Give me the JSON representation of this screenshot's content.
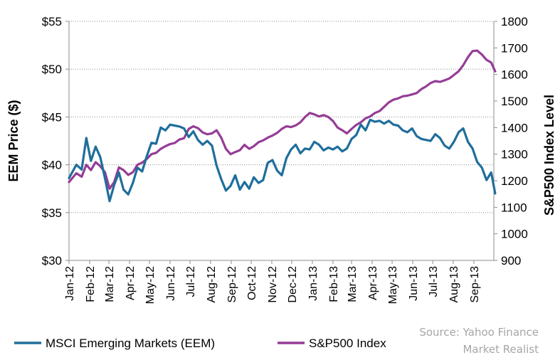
{
  "chart_data": {
    "type": "line",
    "title": "",
    "x_tick_labels": [
      "Jan-12",
      "Feb-12",
      "Mar-12",
      "Apr-12",
      "May-12",
      "Jun-12",
      "Jul-12",
      "Aug-12",
      "Sep-12",
      "Oct-12",
      "Nov-12",
      "Dec-12",
      "Jan-13",
      "Feb-13",
      "Mar-13",
      "Apr-13",
      "May-13",
      "Jun-13",
      "Jul-13",
      "Aug-13",
      "Sep-13"
    ],
    "x_range": [
      "2012-01-01",
      "2013-10-01"
    ],
    "y_left": {
      "label": "EEM Price ($)",
      "ylim": [
        30,
        55
      ],
      "ticks": [
        30,
        35,
        40,
        45,
        50,
        55
      ],
      "tick_labels": [
        "$30",
        "$35",
        "$40",
        "$45",
        "$50",
        "$55"
      ]
    },
    "y_right": {
      "label": "S&P500 Index Level",
      "ylim": [
        900,
        1800
      ],
      "ticks": [
        900,
        1000,
        1100,
        1200,
        1300,
        1400,
        1500,
        1600,
        1700,
        1800
      ],
      "tick_labels": [
        "900",
        "1000",
        "1100",
        "1200",
        "1300",
        "1400",
        "1500",
        "1600",
        "1700",
        "1800"
      ]
    },
    "grid": "horizontal dotted",
    "legend_position": "bottom-left",
    "series": [
      {
        "name": "MSCI Emerging Markets (EEM)",
        "axis": "left",
        "color": "#1f6e9c",
        "points": [
          [
            "2012-01-01",
            38.6
          ],
          [
            "2012-01-12",
            40.0
          ],
          [
            "2012-01-20",
            39.5
          ],
          [
            "2012-01-27",
            42.8
          ],
          [
            "2012-02-03",
            40.4
          ],
          [
            "2012-02-10",
            41.9
          ],
          [
            "2012-02-17",
            40.8
          ],
          [
            "2012-02-24",
            38.6
          ],
          [
            "2012-03-02",
            36.2
          ],
          [
            "2012-03-09",
            37.9
          ],
          [
            "2012-03-16",
            39.2
          ],
          [
            "2012-03-23",
            37.4
          ],
          [
            "2012-03-30",
            36.9
          ],
          [
            "2012-04-06",
            38.1
          ],
          [
            "2012-04-13",
            39.7
          ],
          [
            "2012-04-20",
            39.3
          ],
          [
            "2012-04-27",
            40.9
          ],
          [
            "2012-05-04",
            42.3
          ],
          [
            "2012-05-11",
            42.2
          ],
          [
            "2012-05-18",
            43.9
          ],
          [
            "2012-05-25",
            43.6
          ],
          [
            "2012-06-01",
            44.2
          ],
          [
            "2012-06-08",
            44.1
          ],
          [
            "2012-06-15",
            44.0
          ],
          [
            "2012-06-22",
            43.8
          ],
          [
            "2012-06-29",
            42.9
          ],
          [
            "2012-07-06",
            43.5
          ],
          [
            "2012-07-13",
            42.6
          ],
          [
            "2012-07-20",
            42.1
          ],
          [
            "2012-07-27",
            42.5
          ],
          [
            "2012-08-03",
            42.0
          ],
          [
            "2012-08-10",
            39.9
          ],
          [
            "2012-08-17",
            38.5
          ],
          [
            "2012-08-24",
            37.3
          ],
          [
            "2012-08-31",
            37.8
          ],
          [
            "2012-09-07",
            38.9
          ],
          [
            "2012-09-14",
            37.4
          ],
          [
            "2012-09-21",
            38.2
          ],
          [
            "2012-09-28",
            37.5
          ],
          [
            "2012-10-05",
            38.7
          ],
          [
            "2012-10-12",
            38.1
          ],
          [
            "2012-10-19",
            38.4
          ],
          [
            "2012-10-26",
            40.2
          ],
          [
            "2012-11-02",
            40.5
          ],
          [
            "2012-11-09",
            39.4
          ],
          [
            "2012-11-16",
            38.9
          ],
          [
            "2012-11-23",
            40.7
          ],
          [
            "2012-11-30",
            41.6
          ],
          [
            "2012-12-07",
            42.1
          ],
          [
            "2012-12-14",
            41.2
          ],
          [
            "2012-12-21",
            41.7
          ],
          [
            "2012-12-28",
            41.6
          ],
          [
            "2013-01-04",
            42.4
          ],
          [
            "2013-01-11",
            42.1
          ],
          [
            "2013-01-18",
            41.5
          ],
          [
            "2013-01-25",
            41.8
          ],
          [
            "2013-02-01",
            41.6
          ],
          [
            "2013-02-08",
            41.9
          ],
          [
            "2013-02-15",
            41.4
          ],
          [
            "2013-02-22",
            41.7
          ],
          [
            "2013-03-01",
            42.7
          ],
          [
            "2013-03-08",
            43.1
          ],
          [
            "2013-03-15",
            44.2
          ],
          [
            "2013-03-22",
            43.6
          ],
          [
            "2013-03-29",
            44.7
          ],
          [
            "2013-04-05",
            44.5
          ],
          [
            "2013-04-12",
            44.6
          ],
          [
            "2013-04-19",
            44.3
          ],
          [
            "2013-04-26",
            44.6
          ],
          [
            "2013-05-03",
            44.2
          ],
          [
            "2013-05-10",
            44.1
          ],
          [
            "2013-05-17",
            43.6
          ],
          [
            "2013-05-24",
            43.4
          ],
          [
            "2013-05-31",
            43.8
          ],
          [
            "2013-06-07",
            43.0
          ],
          [
            "2013-06-14",
            42.7
          ],
          [
            "2013-06-21",
            42.6
          ],
          [
            "2013-06-28",
            42.5
          ],
          [
            "2013-07-05",
            43.2
          ],
          [
            "2013-07-12",
            42.8
          ],
          [
            "2013-07-19",
            42.0
          ],
          [
            "2013-07-26",
            41.7
          ],
          [
            "2013-08-02",
            42.4
          ],
          [
            "2013-08-09",
            43.4
          ],
          [
            "2013-08-16",
            43.8
          ],
          [
            "2013-08-23",
            42.4
          ],
          [
            "2013-08-30",
            41.7
          ],
          [
            "2013-09-06",
            40.3
          ],
          [
            "2013-09-13",
            39.7
          ],
          [
            "2013-09-20",
            38.4
          ],
          [
            "2013-09-27",
            39.2
          ],
          [
            "2013-10-03",
            37.0
          ]
        ]
      },
      {
        "name": "S&P500 Index",
        "axis": "right",
        "color": "#953d96",
        "points": [
          [
            "2012-01-01",
            1195
          ],
          [
            "2012-01-12",
            1228
          ],
          [
            "2012-01-20",
            1215
          ],
          [
            "2012-01-27",
            1260
          ],
          [
            "2012-02-03",
            1240
          ],
          [
            "2012-02-10",
            1270
          ],
          [
            "2012-02-17",
            1255
          ],
          [
            "2012-02-24",
            1232
          ],
          [
            "2012-03-02",
            1170
          ],
          [
            "2012-03-09",
            1195
          ],
          [
            "2012-03-16",
            1250
          ],
          [
            "2012-03-23",
            1240
          ],
          [
            "2012-03-30",
            1222
          ],
          [
            "2012-04-06",
            1232
          ],
          [
            "2012-04-13",
            1260
          ],
          [
            "2012-04-20",
            1268
          ],
          [
            "2012-04-27",
            1282
          ],
          [
            "2012-05-04",
            1300
          ],
          [
            "2012-05-11",
            1305
          ],
          [
            "2012-05-18",
            1320
          ],
          [
            "2012-05-25",
            1330
          ],
          [
            "2012-06-01",
            1338
          ],
          [
            "2012-06-08",
            1342
          ],
          [
            "2012-06-15",
            1355
          ],
          [
            "2012-06-22",
            1360
          ],
          [
            "2012-06-29",
            1395
          ],
          [
            "2012-07-06",
            1405
          ],
          [
            "2012-07-13",
            1398
          ],
          [
            "2012-07-20",
            1382
          ],
          [
            "2012-07-27",
            1375
          ],
          [
            "2012-08-03",
            1378
          ],
          [
            "2012-08-10",
            1390
          ],
          [
            "2012-08-17",
            1362
          ],
          [
            "2012-08-24",
            1320
          ],
          [
            "2012-08-31",
            1300
          ],
          [
            "2012-09-07",
            1308
          ],
          [
            "2012-09-14",
            1315
          ],
          [
            "2012-09-21",
            1335
          ],
          [
            "2012-09-28",
            1320
          ],
          [
            "2012-10-05",
            1330
          ],
          [
            "2012-10-12",
            1345
          ],
          [
            "2012-10-19",
            1352
          ],
          [
            "2012-10-26",
            1362
          ],
          [
            "2012-11-02",
            1370
          ],
          [
            "2012-11-09",
            1380
          ],
          [
            "2012-11-16",
            1395
          ],
          [
            "2012-11-23",
            1405
          ],
          [
            "2012-11-30",
            1402
          ],
          [
            "2012-12-07",
            1408
          ],
          [
            "2012-12-14",
            1420
          ],
          [
            "2012-12-21",
            1440
          ],
          [
            "2012-12-28",
            1455
          ],
          [
            "2013-01-04",
            1450
          ],
          [
            "2013-01-11",
            1442
          ],
          [
            "2013-01-18",
            1447
          ],
          [
            "2013-01-25",
            1440
          ],
          [
            "2013-02-01",
            1425
          ],
          [
            "2013-02-08",
            1400
          ],
          [
            "2013-02-15",
            1390
          ],
          [
            "2013-02-22",
            1378
          ],
          [
            "2013-03-01",
            1395
          ],
          [
            "2013-03-08",
            1410
          ],
          [
            "2013-03-15",
            1420
          ],
          [
            "2013-03-22",
            1435
          ],
          [
            "2013-03-29",
            1442
          ],
          [
            "2013-04-05",
            1455
          ],
          [
            "2013-04-12",
            1462
          ],
          [
            "2013-04-19",
            1478
          ],
          [
            "2013-04-26",
            1495
          ],
          [
            "2013-05-03",
            1505
          ],
          [
            "2013-05-10",
            1510
          ],
          [
            "2013-05-17",
            1518
          ],
          [
            "2013-05-24",
            1520
          ],
          [
            "2013-05-31",
            1525
          ],
          [
            "2013-06-07",
            1530
          ],
          [
            "2013-06-14",
            1545
          ],
          [
            "2013-06-21",
            1555
          ],
          [
            "2013-06-28",
            1568
          ],
          [
            "2013-07-05",
            1575
          ],
          [
            "2013-07-12",
            1572
          ],
          [
            "2013-07-19",
            1578
          ],
          [
            "2013-07-26",
            1585
          ],
          [
            "2013-08-02",
            1598
          ],
          [
            "2013-08-09",
            1612
          ],
          [
            "2013-08-16",
            1635
          ],
          [
            "2013-08-23",
            1665
          ],
          [
            "2013-08-30",
            1688
          ],
          [
            "2013-09-06",
            1690
          ],
          [
            "2013-09-13",
            1675
          ],
          [
            "2013-09-20",
            1655
          ],
          [
            "2013-09-27",
            1645
          ],
          [
            "2013-10-03",
            1612
          ]
        ]
      }
    ]
  },
  "legend": {
    "items": [
      {
        "label": "MSCI Emerging Markets (EEM)",
        "color": "#1f6e9c"
      },
      {
        "label": "S&P500 Index",
        "color": "#953d96"
      }
    ]
  },
  "source": {
    "line1": "Source: Yahoo Finance",
    "line2": "Market Realist"
  }
}
